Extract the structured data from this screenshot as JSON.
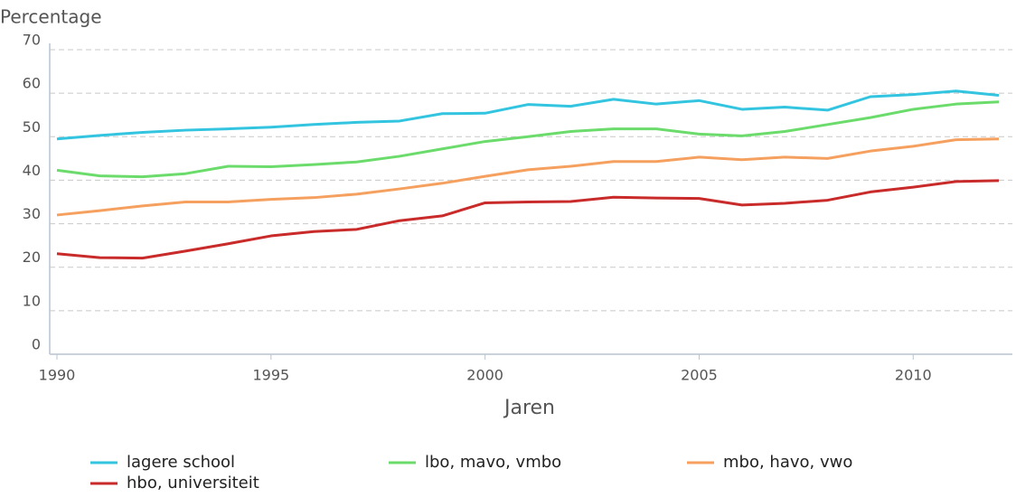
{
  "chart_data": {
    "type": "line",
    "y_label": "Percentage",
    "x_label": "Jaren",
    "x": [
      1990,
      1991,
      1992,
      1993,
      1994,
      1995,
      1996,
      1997,
      1998,
      1999,
      2000,
      2001,
      2002,
      2003,
      2004,
      2005,
      2006,
      2007,
      2008,
      2009,
      2010,
      2011,
      2012
    ],
    "xlim": [
      1990,
      2012
    ],
    "xticks": [
      1990,
      1995,
      2000,
      2005,
      2010
    ],
    "ylim": [
      0,
      70
    ],
    "yticks": [
      0,
      10,
      20,
      30,
      40,
      50,
      60,
      70
    ],
    "grid": true,
    "series": [
      {
        "name": "lagere school",
        "color": "#33c4e0",
        "values": [
          49.5,
          50.3,
          51,
          51.5,
          51.8,
          52.2,
          52.8,
          53.3,
          53.6,
          55.3,
          55.4,
          57.4,
          57,
          58.6,
          57.5,
          58.3,
          56.3,
          56.8,
          56.1,
          59.2,
          59.7,
          60.5,
          59.5
        ]
      },
      {
        "name": "lbo, mavo, vmbo",
        "color": "#6bdc6b",
        "values": [
          42.3,
          41,
          40.8,
          41.5,
          43.2,
          43.1,
          43.6,
          44.2,
          45.5,
          47.2,
          48.9,
          50,
          51.2,
          51.8,
          51.8,
          50.6,
          50.2,
          51.2,
          52.8,
          54.4,
          56.3,
          57.5,
          58
        ]
      },
      {
        "name": "mbo, havo, vwo",
        "color": "#f5a05f",
        "values": [
          32,
          33,
          34.1,
          35,
          35,
          35.6,
          36,
          36.8,
          38,
          39.3,
          40.9,
          42.4,
          43.2,
          44.3,
          44.3,
          45.3,
          44.7,
          45.3,
          45,
          46.7,
          47.8,
          49.3,
          49.5
        ]
      },
      {
        "name": "hbo, universiteit",
        "color": "#c92a2a",
        "values": [
          23.1,
          22.2,
          22.1,
          23.7,
          25.4,
          27.2,
          28.2,
          28.7,
          30.7,
          31.8,
          34.8,
          35,
          35.1,
          36.1,
          35.9,
          35.8,
          34.3,
          34.7,
          35.4,
          37.3,
          38.4,
          39.7,
          39.9
        ]
      }
    ]
  }
}
